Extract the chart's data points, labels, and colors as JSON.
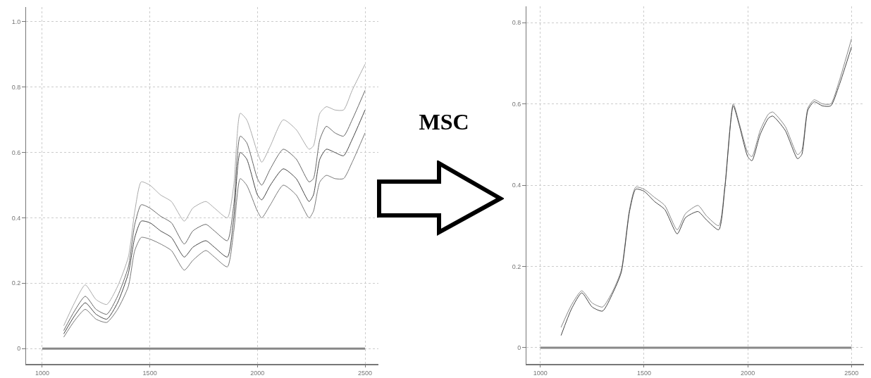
{
  "chart_data": [
    {
      "type": "line",
      "xlim": [
        925,
        2562
      ],
      "ylim": [
        -0.047,
        1.045
      ],
      "xticks": [
        1000,
        1500,
        2000,
        2500
      ],
      "yticks": [
        0,
        0.2,
        0.4,
        0.6,
        0.8,
        {
          "value": 1,
          "label": "1.0"
        }
      ],
      "grid": true,
      "marker": "none",
      "line_style": "solid",
      "ref_lines": [
        {
          "axis": "y",
          "value": 0,
          "color": "#888888"
        }
      ],
      "x": [
        1100,
        1150,
        1200,
        1250,
        1300,
        1350,
        1400,
        1430,
        1460,
        1500,
        1550,
        1600,
        1660,
        1700,
        1760,
        1800,
        1860,
        1890,
        1920,
        1950,
        2000,
        2020,
        2060,
        2120,
        2180,
        2240,
        2260,
        2290,
        2320,
        2360,
        2400,
        2440,
        2500
      ],
      "series": [
        {
          "color": "#aaaaaa",
          "values": [
            0.07,
            0.14,
            0.195,
            0.15,
            0.135,
            0.19,
            0.28,
            0.42,
            0.51,
            0.5,
            0.47,
            0.45,
            0.39,
            0.43,
            0.45,
            0.43,
            0.4,
            0.5,
            0.72,
            0.7,
            0.6,
            0.57,
            0.62,
            0.7,
            0.67,
            0.61,
            0.62,
            0.72,
            0.74,
            0.73,
            0.73,
            0.79,
            0.87
          ]
        },
        {
          "color": "#666666",
          "values": [
            0.055,
            0.115,
            0.16,
            0.12,
            0.105,
            0.16,
            0.25,
            0.38,
            0.44,
            0.43,
            0.405,
            0.385,
            0.32,
            0.36,
            0.38,
            0.36,
            0.33,
            0.44,
            0.65,
            0.63,
            0.52,
            0.5,
            0.55,
            0.61,
            0.58,
            0.51,
            0.52,
            0.64,
            0.68,
            0.66,
            0.65,
            0.7,
            0.79
          ]
        },
        {
          "color": "#444444",
          "values": [
            0.045,
            0.1,
            0.14,
            0.105,
            0.09,
            0.14,
            0.23,
            0.34,
            0.39,
            0.385,
            0.36,
            0.34,
            0.28,
            0.31,
            0.33,
            0.31,
            0.28,
            0.4,
            0.6,
            0.58,
            0.47,
            0.455,
            0.5,
            0.55,
            0.52,
            0.45,
            0.47,
            0.58,
            0.61,
            0.6,
            0.59,
            0.64,
            0.73
          ]
        },
        {
          "color": "#777777",
          "values": [
            0.035,
            0.085,
            0.12,
            0.09,
            0.08,
            0.12,
            0.19,
            0.3,
            0.34,
            0.335,
            0.32,
            0.3,
            0.24,
            0.27,
            0.3,
            0.28,
            0.25,
            0.36,
            0.52,
            0.5,
            0.42,
            0.4,
            0.44,
            0.5,
            0.47,
            0.4,
            0.42,
            0.51,
            0.53,
            0.52,
            0.52,
            0.57,
            0.66
          ]
        }
      ]
    },
    {
      "type": "other",
      "annotations": [
        "MSC"
      ]
    },
    {
      "type": "line",
      "xlim": [
        933,
        2560
      ],
      "ylim": [
        -0.04,
        0.84
      ],
      "xticks": [
        1000,
        1500,
        2000,
        2500
      ],
      "yticks": [
        0,
        0.2,
        0.4,
        0.6,
        0.8
      ],
      "grid": true,
      "marker": "none",
      "line_style": "solid",
      "ref_lines": [
        {
          "axis": "y",
          "value": 0,
          "color": "#888888"
        }
      ],
      "x": [
        1100,
        1150,
        1200,
        1250,
        1300,
        1350,
        1390,
        1430,
        1460,
        1500,
        1550,
        1600,
        1660,
        1700,
        1760,
        1800,
        1860,
        1890,
        1930,
        1960,
        2000,
        2020,
        2060,
        2100,
        2120,
        2180,
        2240,
        2260,
        2290,
        2320,
        2360,
        2400,
        2440,
        2500
      ],
      "series": [
        {
          "color": "#888888",
          "values": [
            0.05,
            0.105,
            0.14,
            0.11,
            0.1,
            0.14,
            0.19,
            0.34,
            0.395,
            0.39,
            0.37,
            0.35,
            0.29,
            0.33,
            0.35,
            0.325,
            0.3,
            0.4,
            0.6,
            0.55,
            0.48,
            0.47,
            0.535,
            0.575,
            0.58,
            0.545,
            0.475,
            0.485,
            0.59,
            0.61,
            0.6,
            0.6,
            0.655,
            0.76
          ]
        },
        {
          "color": "#444444",
          "values": [
            0.03,
            0.095,
            0.135,
            0.1,
            0.09,
            0.135,
            0.185,
            0.335,
            0.39,
            0.385,
            0.36,
            0.34,
            0.28,
            0.32,
            0.335,
            0.315,
            0.29,
            0.395,
            0.595,
            0.545,
            0.47,
            0.46,
            0.525,
            0.565,
            0.57,
            0.535,
            0.465,
            0.475,
            0.585,
            0.605,
            0.595,
            0.595,
            0.645,
            0.74
          ]
        }
      ]
    }
  ]
}
